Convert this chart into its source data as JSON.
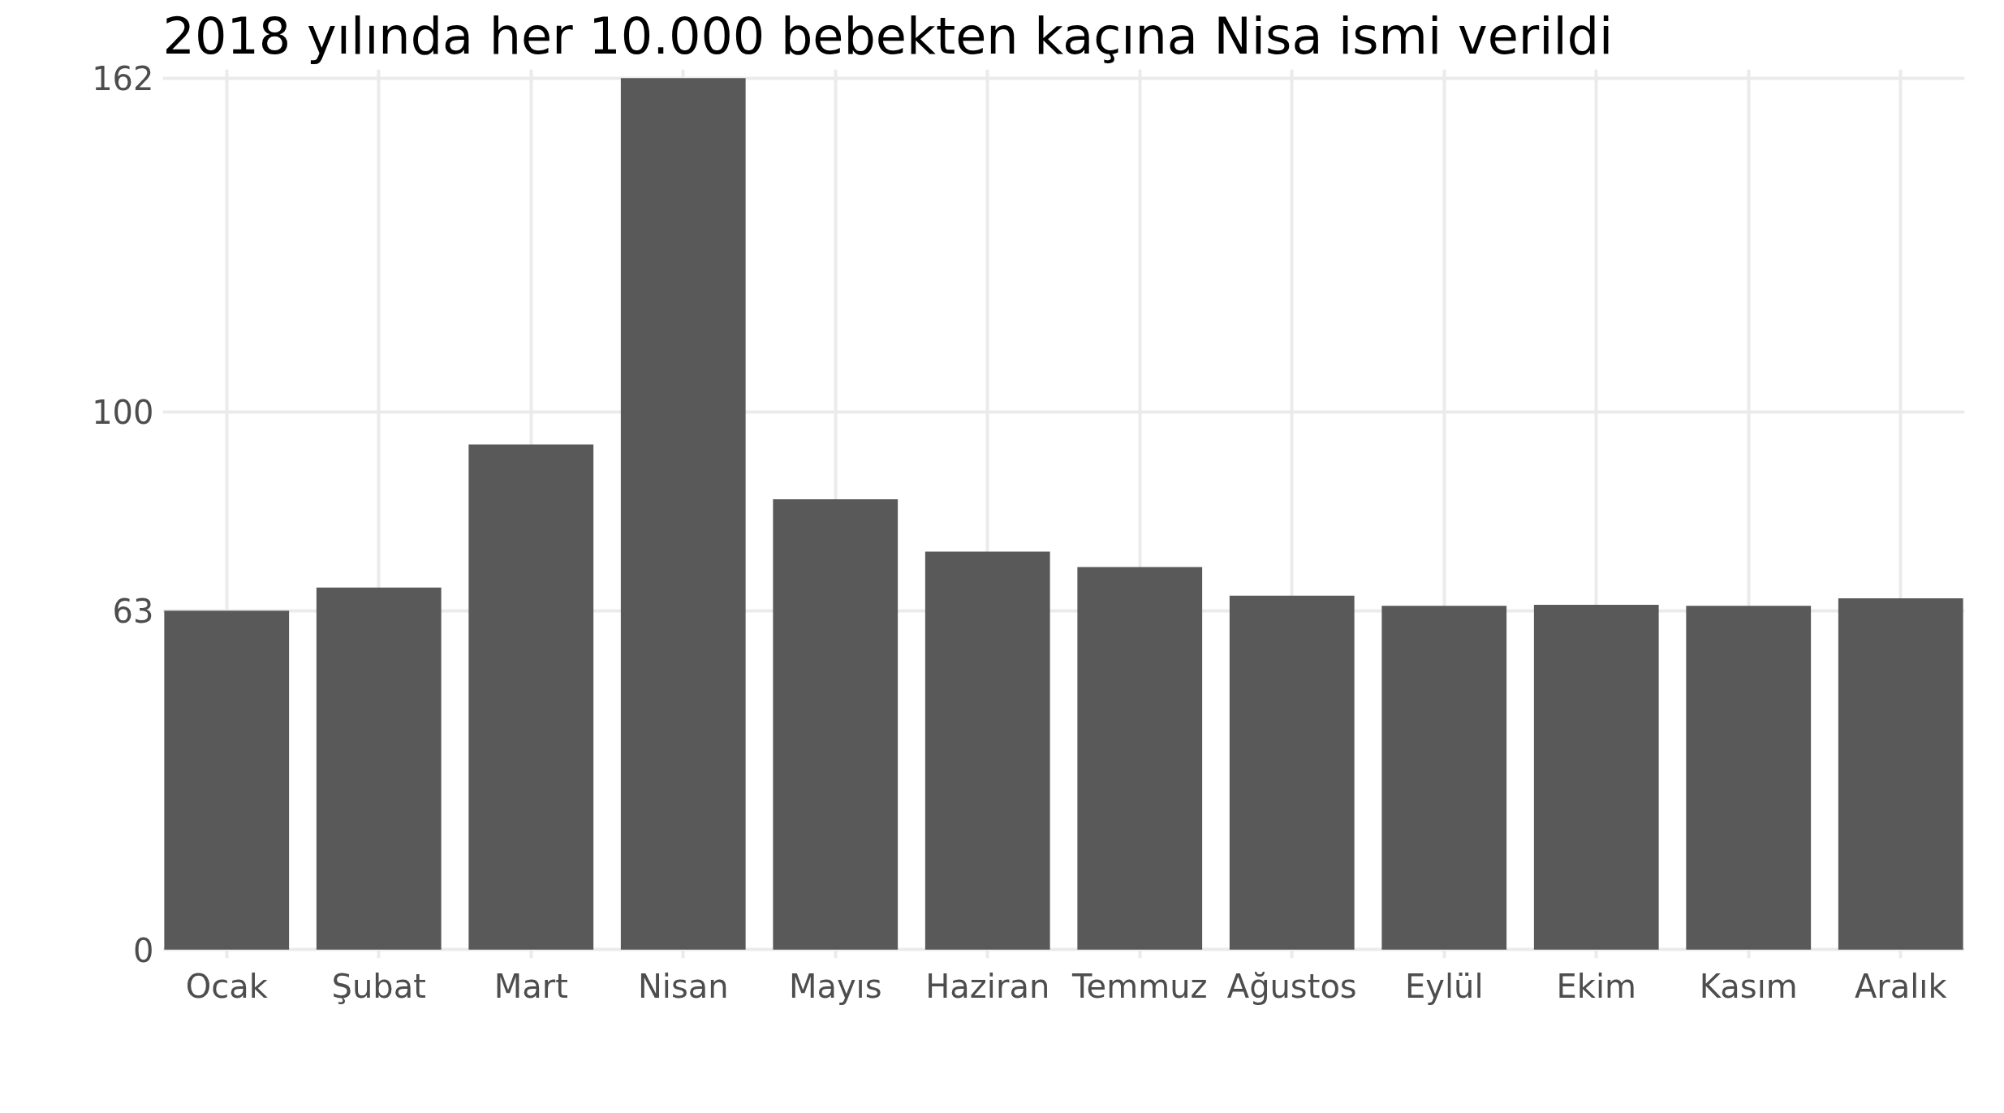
{
  "chart_data": {
    "type": "bar",
    "title": "2018 yılında her 10.000 bebekten kaçına Nisa ismi verildi",
    "categories": [
      "Ocak",
      "Şubat",
      "Mart",
      "Nisan",
      "Mayıs",
      "Haziran",
      "Temmuz",
      "Ağustos",
      "Eylül",
      "Ekim",
      "Kasım",
      "Aralık"
    ],
    "values": [
      63,
      67.3,
      93.9,
      162,
      83.7,
      74,
      71.1,
      65.8,
      63.9,
      64.1,
      63.9,
      65.3
    ],
    "color": "#595959",
    "ylim": [
      0,
      162
    ],
    "yticks": [
      0,
      63,
      100,
      162
    ],
    "grid": true
  }
}
